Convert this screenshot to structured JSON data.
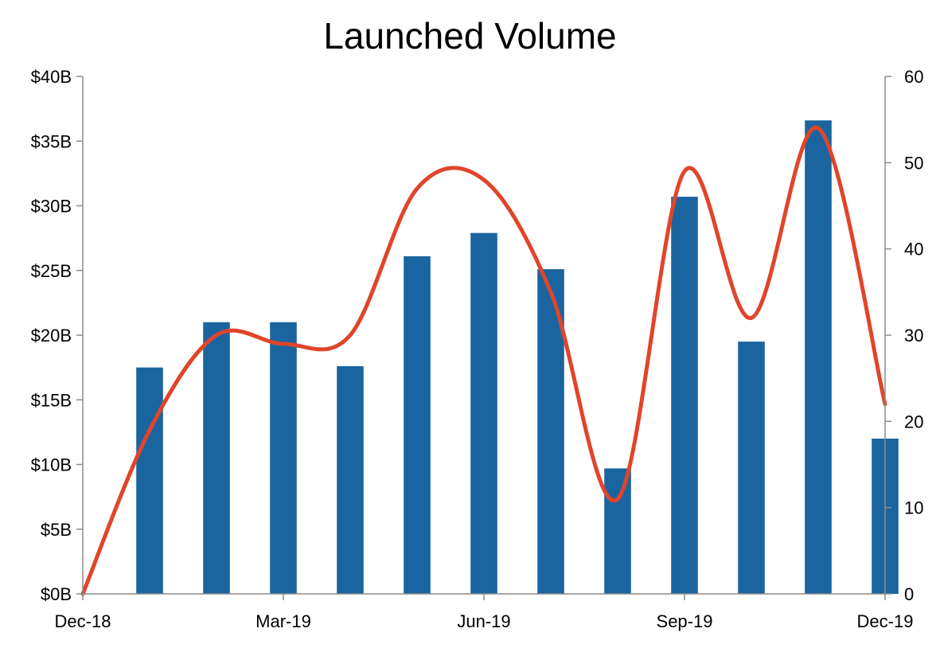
{
  "chart_data": {
    "type": "bar",
    "title": "Launched Volume",
    "x": {
      "dates": [
        "Jan-19",
        "Feb-19",
        "Mar-19",
        "Apr-19",
        "May-19",
        "Jun-19",
        "Jul-19",
        "Aug-19",
        "Sep-19",
        "Oct-19",
        "Nov-19",
        "Dec-19"
      ],
      "tick_labels": [
        "Dec-18",
        "Mar-19",
        "Jun-19",
        "Sep-19",
        "Dec-19"
      ],
      "range": [
        "Dec-18",
        "Dec-19"
      ]
    },
    "y_left": {
      "ylim": [
        0,
        40
      ],
      "ticks": [
        0,
        5,
        10,
        15,
        20,
        25,
        30,
        35,
        40
      ],
      "tick_labels": [
        "$0B",
        "$5B",
        "$10B",
        "$15B",
        "$20B",
        "$25B",
        "$30B",
        "$35B",
        "$40B"
      ]
    },
    "y_right": {
      "ylim": [
        0,
        60
      ],
      "ticks": [
        0,
        10,
        20,
        30,
        40,
        50,
        60
      ],
      "tick_labels": [
        "0",
        "10",
        "20",
        "30",
        "40",
        "50",
        "60"
      ]
    },
    "series": [
      {
        "kind": "bar",
        "axis": "left",
        "color": "#1a65a0",
        "values": [
          17.5,
          21.0,
          21.0,
          17.6,
          26.1,
          27.9,
          25.1,
          9.7,
          30.7,
          19.5,
          36.6,
          12.0
        ]
      },
      {
        "kind": "line",
        "axis": "right",
        "color": "#e0452a",
        "smooth": true,
        "x": [
          "Dec-18",
          "Jan-19",
          "Feb-19",
          "Mar-19",
          "Apr-19",
          "May-19",
          "Jun-19",
          "Jul-19",
          "Aug-19",
          "Sep-19",
          "Oct-19",
          "Nov-19",
          "Dec-19"
        ],
        "values": [
          0,
          19,
          30,
          29,
          30,
          47,
          48,
          35,
          11,
          49,
          32,
          54,
          22
        ]
      }
    ],
    "grid": false,
    "legend": "none"
  }
}
